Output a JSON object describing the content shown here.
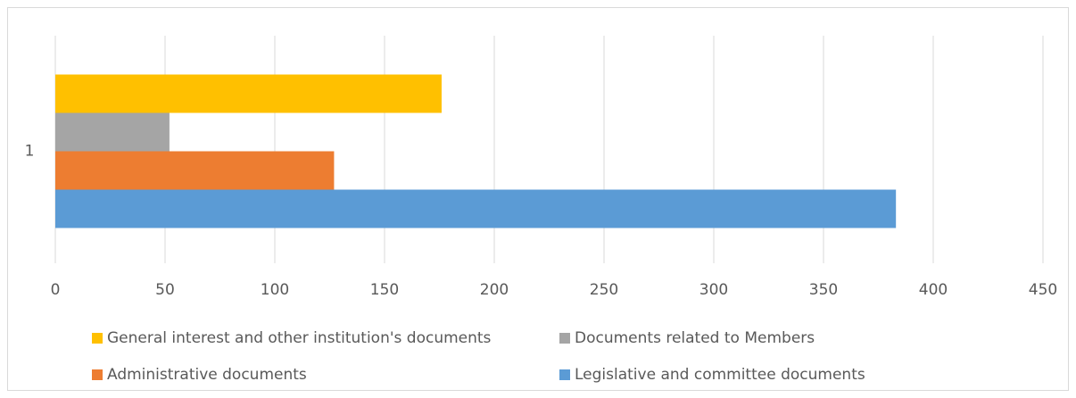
{
  "chart_data": {
    "type": "hbar",
    "categories": [
      "1"
    ],
    "series": [
      {
        "name": "General interest and other institution's documents",
        "color": "#ffc000",
        "values": [
          176
        ]
      },
      {
        "name": "Documents related to Members",
        "color": "#a5a5a5",
        "values": [
          52
        ]
      },
      {
        "name": "Administrative documents",
        "color": "#ed7d31",
        "values": [
          127
        ]
      },
      {
        "name": "Legislative and committee documents",
        "color": "#5b9bd5",
        "values": [
          383
        ]
      }
    ],
    "xlim": [
      0,
      450
    ],
    "xticks": [
      0,
      50,
      100,
      150,
      200,
      250,
      300,
      350,
      400,
      450
    ],
    "grid": true,
    "legend": "bottom"
  }
}
